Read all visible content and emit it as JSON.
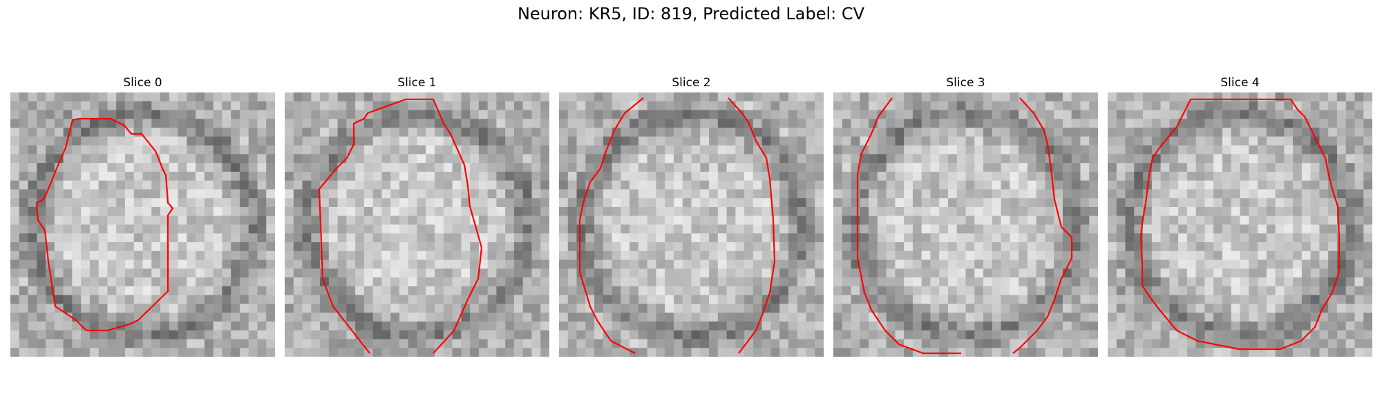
{
  "figure": {
    "title": "Neuron: KR5, ID: 819, Predicted Label: CV"
  },
  "panels": [
    {
      "title": "Slice 0"
    },
    {
      "title": "Slice 1"
    },
    {
      "title": "Slice 2"
    },
    {
      "title": "Slice 3"
    },
    {
      "title": "Slice 4"
    }
  ],
  "image": {
    "colormap": "grayscale",
    "contour_color": "#ff0000"
  }
}
